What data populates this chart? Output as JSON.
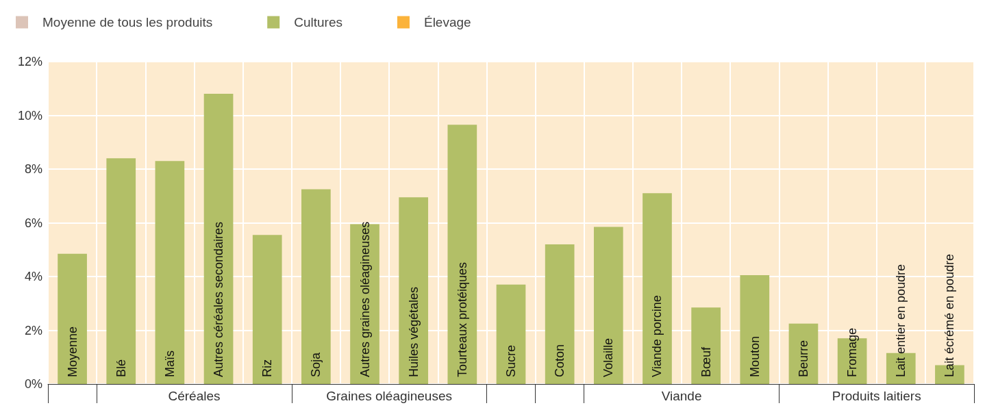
{
  "chart_data": {
    "type": "bar",
    "categories": [
      "Moyenne",
      "Blé",
      "Maïs",
      "Autres céréales secondaires",
      "Riz",
      "Soja",
      "Autres graines oléagineuses",
      "Huiles végétales",
      "Tourteaux protéiques",
      "Sucre",
      "Coton",
      "Volaille",
      "Viande porcine",
      "Bœuf",
      "Mouton",
      "Beurre",
      "Fromage",
      "Lait entier en poudre",
      "Lait écrémé en poudre"
    ],
    "series": [
      {
        "name": "Moyenne de tous les produits",
        "color": "#dcc4b8",
        "values": [
          null,
          null,
          null,
          null,
          null,
          null,
          null,
          null,
          null,
          null,
          null,
          null,
          null,
          null,
          null,
          null,
          null,
          null,
          null
        ]
      },
      {
        "name": "Cultures",
        "color": "#b2bf67",
        "values": [
          4.85,
          8.4,
          8.3,
          10.8,
          5.55,
          7.25,
          5.95,
          6.95,
          9.65,
          3.7,
          5.2,
          5.85,
          7.1,
          2.85,
          4.05,
          2.25,
          1.7,
          1.15,
          0.7
        ]
      },
      {
        "name": "Élevage",
        "color": "#fbb33b",
        "values": [
          null,
          null,
          null,
          null,
          null,
          null,
          null,
          null,
          null,
          null,
          null,
          null,
          null,
          null,
          null,
          null,
          null,
          null,
          null
        ]
      }
    ],
    "ylim": [
      0,
      12
    ],
    "yticks": [
      {
        "value": 0,
        "label": "0%"
      },
      {
        "value": 2,
        "label": "2%"
      },
      {
        "value": 4,
        "label": "4%"
      },
      {
        "value": 6,
        "label": "6%"
      },
      {
        "value": 8,
        "label": "8%"
      },
      {
        "value": 10,
        "label": "10%"
      },
      {
        "value": 12,
        "label": "12%"
      }
    ],
    "grid": true,
    "legend": "top left",
    "annotations": [
      "Céréales",
      "Graines oléagineuses",
      "Viande",
      "Produits laitiers"
    ]
  }
}
